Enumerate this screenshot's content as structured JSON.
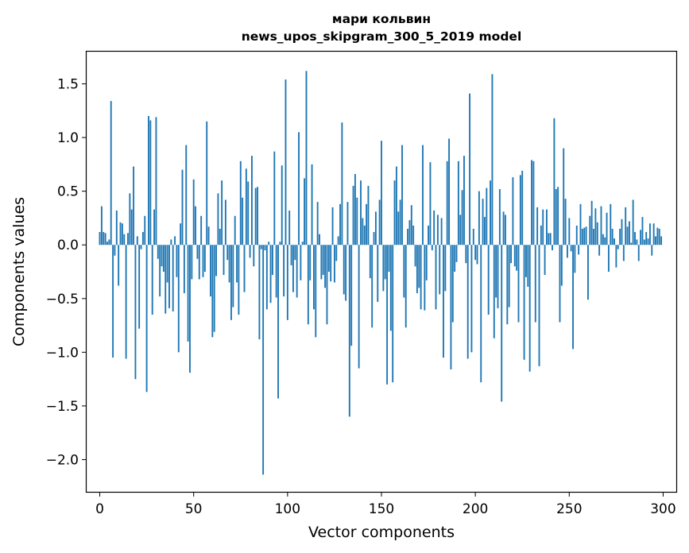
{
  "chart_data": {
    "type": "bar",
    "title": "мари кольвин",
    "subtitle": "news_upos_skipgram_300_5_2019 model",
    "xlabel": "Vector components",
    "ylabel": "Components values",
    "xlim": [
      -7,
      307
    ],
    "ylim": [
      -2.3,
      1.8
    ],
    "xticks": [
      0,
      50,
      100,
      150,
      200,
      250,
      300
    ],
    "yticks": [
      -2.0,
      -1.5,
      -1.0,
      -0.5,
      0.0,
      0.5,
      1.0,
      1.5
    ],
    "ytick_labels": [
      "−2.0",
      "−1.5",
      "−1.0",
      "−0.5",
      "0.0",
      "0.5",
      "1.0",
      "1.5"
    ],
    "grid": false,
    "bar_color": "#1f77b4",
    "x": [
      0,
      1,
      2,
      3,
      4,
      5,
      6,
      7,
      8,
      9,
      10,
      11,
      12,
      13,
      14,
      15,
      16,
      17,
      18,
      19,
      20,
      21,
      22,
      23,
      24,
      25,
      26,
      27,
      28,
      29,
      30,
      31,
      32,
      33,
      34,
      35,
      36,
      37,
      38,
      39,
      40,
      41,
      42,
      43,
      44,
      45,
      46,
      47,
      48,
      49,
      50,
      51,
      52,
      53,
      54,
      55,
      56,
      57,
      58,
      59,
      60,
      61,
      62,
      63,
      64,
      65,
      66,
      67,
      68,
      69,
      70,
      71,
      72,
      73,
      74,
      75,
      76,
      77,
      78,
      79,
      80,
      81,
      82,
      83,
      84,
      85,
      86,
      87,
      88,
      89,
      90,
      91,
      92,
      93,
      94,
      95,
      96,
      97,
      98,
      99,
      100,
      101,
      102,
      103,
      104,
      105,
      106,
      107,
      108,
      109,
      110,
      111,
      112,
      113,
      114,
      115,
      116,
      117,
      118,
      119,
      120,
      121,
      122,
      123,
      124,
      125,
      126,
      127,
      128,
      129,
      130,
      131,
      132,
      133,
      134,
      135,
      136,
      137,
      138,
      139,
      140,
      141,
      142,
      143,
      144,
      145,
      146,
      147,
      148,
      149,
      150,
      151,
      152,
      153,
      154,
      155,
      156,
      157,
      158,
      159,
      160,
      161,
      162,
      163,
      164,
      165,
      166,
      167,
      168,
      169,
      170,
      171,
      172,
      173,
      174,
      175,
      176,
      177,
      178,
      179,
      180,
      181,
      182,
      183,
      184,
      185,
      186,
      187,
      188,
      189,
      190,
      191,
      192,
      193,
      194,
      195,
      196,
      197,
      198,
      199,
      200,
      201,
      202,
      203,
      204,
      205,
      206,
      207,
      208,
      209,
      210,
      211,
      212,
      213,
      214,
      215,
      216,
      217,
      218,
      219,
      220,
      221,
      222,
      223,
      224,
      225,
      226,
      227,
      228,
      229,
      230,
      231,
      232,
      233,
      234,
      235,
      236,
      237,
      238,
      239,
      240,
      241,
      242,
      243,
      244,
      245,
      246,
      247,
      248,
      249,
      250,
      251,
      252,
      253,
      254,
      255,
      256,
      257,
      258,
      259,
      260,
      261,
      262,
      263,
      264,
      265,
      266,
      267,
      268,
      269,
      270,
      271,
      272,
      273,
      274,
      275,
      276,
      277,
      278,
      279,
      280,
      281,
      282,
      283,
      284,
      285,
      286,
      287,
      288,
      289,
      290,
      291,
      292,
      293,
      294,
      295,
      296,
      297,
      298,
      299
    ],
    "values": [
      0.12,
      0.36,
      0.12,
      0.11,
      0.03,
      0.05,
      1.34,
      -1.05,
      -0.1,
      0.32,
      -0.38,
      0.21,
      0.2,
      0.1,
      -1.06,
      0.11,
      0.48,
      0.33,
      0.73,
      -1.25,
      0.08,
      -0.78,
      -0.04,
      0.12,
      0.27,
      -1.37,
      1.2,
      1.16,
      -0.65,
      0.33,
      1.19,
      -0.13,
      -0.48,
      -0.2,
      -0.25,
      -0.64,
      -0.35,
      -0.59,
      0.05,
      -0.62,
      0.08,
      -0.3,
      -1.0,
      0.2,
      0.7,
      -0.45,
      0.93,
      -0.9,
      -1.19,
      -0.32,
      0.61,
      0.36,
      -0.13,
      -0.32,
      0.27,
      -0.3,
      -0.25,
      1.15,
      0.17,
      -0.48,
      -0.86,
      -0.81,
      -0.29,
      0.48,
      0.15,
      0.6,
      -0.28,
      0.42,
      -0.14,
      -0.35,
      -0.7,
      -0.58,
      0.27,
      -0.35,
      -0.65,
      0.78,
      0.44,
      -0.44,
      0.71,
      0.59,
      -0.12,
      0.83,
      -0.2,
      0.53,
      0.54,
      -0.88,
      -0.04,
      -2.14,
      -0.05,
      -0.6,
      0.03,
      -0.54,
      -0.28,
      0.87,
      -0.49,
      -1.43,
      0.03,
      0.74,
      -0.48,
      1.54,
      -0.7,
      0.32,
      -0.19,
      -0.44,
      -0.14,
      -0.49,
      1.05,
      -0.33,
      0.03,
      0.62,
      1.62,
      -0.74,
      -0.33,
      0.75,
      -0.6,
      -0.86,
      0.4,
      0.1,
      -0.32,
      -0.28,
      -0.4,
      -0.74,
      -0.25,
      -0.34,
      0.35,
      -0.35,
      -0.15,
      0.08,
      0.38,
      1.14,
      -0.46,
      -0.52,
      0.4,
      -1.6,
      -0.94,
      0.55,
      0.66,
      0.44,
      -1.15,
      0.6,
      0.25,
      0.18,
      0.38,
      0.55,
      -0.31,
      -0.77,
      0.12,
      0.31,
      -0.53,
      0.42,
      0.97,
      -0.43,
      -0.32,
      -1.3,
      -0.25,
      -0.8,
      -1.28,
      0.6,
      0.73,
      0.31,
      0.42,
      0.93,
      -0.49,
      -0.77,
      0.15,
      0.23,
      0.37,
      0.18,
      -0.2,
      -0.45,
      -0.4,
      -0.6,
      0.93,
      -0.61,
      -0.33,
      0.18,
      0.77,
      -0.05,
      0.32,
      -0.6,
      0.28,
      -0.46,
      0.25,
      -1.05,
      -0.43,
      0.78,
      0.99,
      -1.16,
      -0.72,
      -0.25,
      -0.16,
      0.78,
      0.28,
      0.51,
      0.83,
      -0.17,
      -1.06,
      1.41,
      -1.0,
      0.15,
      -0.14,
      -0.18,
      0.5,
      -1.28,
      0.43,
      0.26,
      0.53,
      -0.65,
      0.6,
      1.59,
      -0.87,
      -0.49,
      -0.59,
      0.52,
      -1.46,
      0.31,
      0.28,
      -0.74,
      -0.58,
      -0.17,
      0.63,
      -0.2,
      -0.24,
      -0.72,
      0.65,
      0.69,
      -1.07,
      -0.3,
      -0.39,
      -1.18,
      0.79,
      0.78,
      -0.72,
      0.35,
      -1.13,
      0.18,
      0.33,
      -0.28,
      0.33,
      0.11,
      0.11,
      -0.05,
      1.18,
      0.52,
      0.54,
      -0.72,
      -0.38,
      0.9,
      0.43,
      -0.12,
      0.25,
      -0.06,
      -0.97,
      -0.26,
      0.18,
      -0.09,
      0.38,
      0.15,
      0.16,
      0.17,
      -0.51,
      0.27,
      0.41,
      0.15,
      0.34,
      0.21,
      -0.1,
      0.36,
      0.1,
      0.07,
      0.3,
      -0.25,
      0.38,
      0.15,
      0.06,
      -0.21,
      -0.04,
      0.15,
      0.24,
      -0.15,
      0.35,
      0.17,
      0.22,
      0.02,
      0.42,
      0.12,
      0.05,
      -0.15,
      0.14,
      0.26,
      0.05,
      0.12,
      0.06,
      0.2,
      -0.1,
      0.2,
      0.08,
      0.16,
      0.15,
      0.08
    ]
  }
}
